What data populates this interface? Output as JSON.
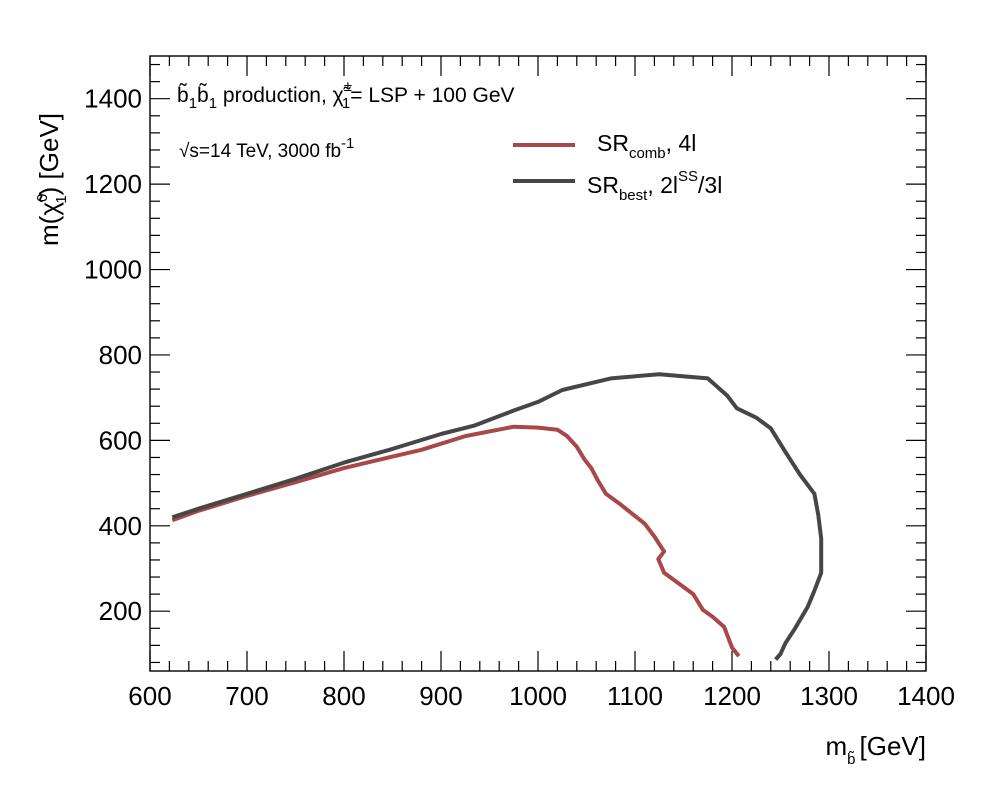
{
  "chart_data": {
    "type": "line",
    "title": "",
    "xlabel_main": "m",
    "xlabel_sub": "b̃",
    "xlabel_unit": "[GeV]",
    "ylabel_main": "m(",
    "ylabel_chi": "χ̃",
    "ylabel_sup": "0",
    "ylabel_sub": "1",
    "ylabel_unit": ") [GeV]",
    "xlim": [
      600,
      1400
    ],
    "ylim": [
      60,
      1500
    ],
    "x_ticks": [
      600,
      700,
      800,
      900,
      1000,
      1100,
      1200,
      1300,
      1400
    ],
    "y_ticks": [
      200,
      400,
      600,
      800,
      1000,
      1200,
      1400
    ],
    "x_tick_labels": [
      "600",
      "700",
      "800",
      "900",
      "1000",
      "1100",
      "1200",
      "1300",
      "1400"
    ],
    "y_tick_labels": [
      "200",
      "400",
      "600",
      "800",
      "1000",
      "1200",
      "1400"
    ],
    "annotations": {
      "process_b": "b̃",
      "process_sub": "1",
      "process_rest": "production,",
      "process_chi": "χ̃",
      "process_chi_sup": "±",
      "process_chi_sub": "1",
      "process_tail": "= LSP + 100 GeV",
      "energy_prefix": "√s=14 TeV, 3000 fb",
      "energy_sup": "-1"
    },
    "legend": [
      {
        "name": "SR",
        "sub": "comb",
        "tail": ", 4l",
        "sup": ""
      },
      {
        "name": "SR",
        "sub": "best",
        "tail": ", 2l",
        "sup": "SS",
        "tail2": "/3l"
      }
    ],
    "series": [
      {
        "name": "SR_comb, 4l",
        "color": "#a84848",
        "points": [
          [
            623,
            413
          ],
          [
            650,
            435
          ],
          [
            700,
            470
          ],
          [
            750,
            502
          ],
          [
            800,
            535
          ],
          [
            850,
            562
          ],
          [
            880,
            578
          ],
          [
            925,
            610
          ],
          [
            975,
            632
          ],
          [
            1000,
            630
          ],
          [
            1020,
            625
          ],
          [
            1030,
            610
          ],
          [
            1040,
            585
          ],
          [
            1048,
            555
          ],
          [
            1055,
            535
          ],
          [
            1062,
            505
          ],
          [
            1070,
            475
          ],
          [
            1085,
            450
          ],
          [
            1110,
            405
          ],
          [
            1120,
            375
          ],
          [
            1127,
            350
          ],
          [
            1130,
            340
          ],
          [
            1124,
            322
          ],
          [
            1130,
            290
          ],
          [
            1145,
            265
          ],
          [
            1160,
            240
          ],
          [
            1170,
            203
          ],
          [
            1180,
            187
          ],
          [
            1192,
            163
          ],
          [
            1200,
            115
          ],
          [
            1207,
            95
          ]
        ]
      },
      {
        "name": "SR_best, 2l^SS/3l",
        "color": "#464646",
        "points": [
          [
            623,
            420
          ],
          [
            650,
            440
          ],
          [
            700,
            475
          ],
          [
            750,
            510
          ],
          [
            800,
            548
          ],
          [
            850,
            580
          ],
          [
            900,
            615
          ],
          [
            935,
            635
          ],
          [
            975,
            670
          ],
          [
            1000,
            690
          ],
          [
            1025,
            718
          ],
          [
            1075,
            745
          ],
          [
            1125,
            755
          ],
          [
            1175,
            745
          ],
          [
            1195,
            705
          ],
          [
            1205,
            675
          ],
          [
            1225,
            653
          ],
          [
            1240,
            628
          ],
          [
            1255,
            573
          ],
          [
            1270,
            520
          ],
          [
            1285,
            475
          ],
          [
            1289,
            425
          ],
          [
            1292,
            370
          ],
          [
            1292,
            290
          ],
          [
            1285,
            248
          ],
          [
            1278,
            210
          ],
          [
            1265,
            160
          ],
          [
            1255,
            125
          ],
          [
            1250,
            100
          ],
          [
            1245,
            87
          ]
        ]
      }
    ]
  }
}
